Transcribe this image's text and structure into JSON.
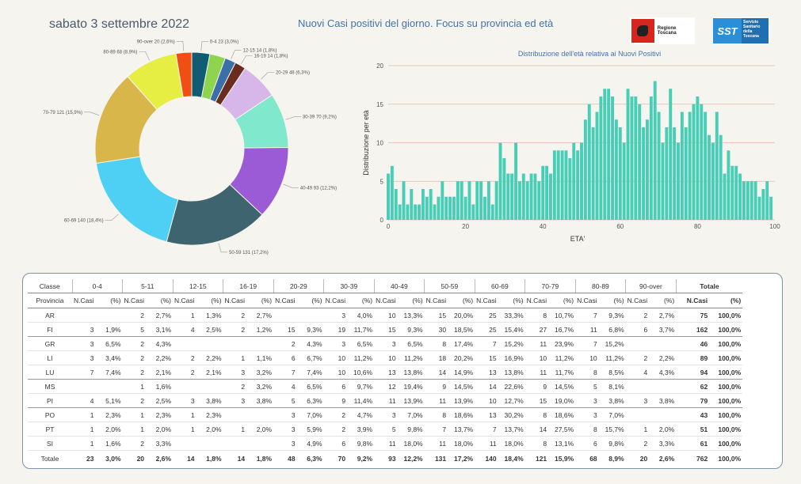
{
  "header": {
    "date": "sabato 3 settembre 2022",
    "title": "Nuovi Casi positivi del giorno. Focus su provincia ed età",
    "logo_region": "Regione Toscana",
    "logo_sst_mark": "SST",
    "logo_sst_text": "Servizio Sanitario della Toscana"
  },
  "colors": {
    "histogram_bar": "#48cdb7",
    "grid": "#e8b9a6"
  },
  "chart_data": [
    {
      "type": "pie",
      "title": "",
      "categories": [
        "0-4",
        "5-11",
        "12-15",
        "16-19",
        "20-29",
        "30-39",
        "40-49",
        "50-59",
        "60-69",
        "70-79",
        "80-89",
        "90-over"
      ],
      "values": [
        23,
        20,
        14,
        14,
        48,
        70,
        93,
        131,
        140,
        121,
        68,
        20
      ],
      "labels": [
        "0-4 23 (3,0%)",
        "",
        "12-15 14 (1,8%)",
        "16-19 14 (1,8%)",
        "20-29 48 (6,3%)",
        "30-39 70 (9,2%)",
        "40-49 93 (12,2%)",
        "50-59 131 (17,2%)",
        "60-69 140 (18,4%)",
        "70-79 121 (15,9%)",
        "80-89 68 (8,9%)",
        "90-over 20 (2,6%)"
      ],
      "colors": [
        "#0f5c73",
        "#8fd44e",
        "#3b6fa8",
        "#6b2c20",
        "#d7b6ea",
        "#80e8cc",
        "#9b5ad6",
        "#3e6470",
        "#4dd0f3",
        "#d9b64a",
        "#e6ee44",
        "#f04f14"
      ]
    },
    {
      "type": "bar",
      "title": "Distribuzione dell'età relativa ai Nuovi Positivi",
      "xlabel": "ETA'",
      "ylabel": "Distribuzione per età",
      "xlim": [
        0,
        100
      ],
      "ylim": [
        0,
        20
      ],
      "xticks": [
        0,
        20,
        40,
        60,
        80,
        100
      ],
      "yticks": [
        0,
        5,
        10,
        15,
        20
      ],
      "x": [
        0,
        1,
        2,
        3,
        4,
        5,
        6,
        7,
        8,
        9,
        10,
        11,
        12,
        13,
        14,
        15,
        16,
        17,
        18,
        19,
        20,
        21,
        22,
        23,
        24,
        25,
        26,
        27,
        28,
        29,
        30,
        31,
        32,
        33,
        34,
        35,
        36,
        37,
        38,
        39,
        40,
        41,
        42,
        43,
        44,
        45,
        46,
        47,
        48,
        49,
        50,
        51,
        52,
        53,
        54,
        55,
        56,
        57,
        58,
        59,
        60,
        61,
        62,
        63,
        64,
        65,
        66,
        67,
        68,
        69,
        70,
        71,
        72,
        73,
        74,
        75,
        76,
        77,
        78,
        79,
        80,
        81,
        82,
        83,
        84,
        85,
        86,
        87,
        88,
        89,
        90,
        91,
        92,
        93,
        94,
        95,
        96,
        97,
        98,
        99
      ],
      "values": [
        6,
        7,
        4,
        2,
        5,
        2,
        4,
        2,
        2,
        4,
        3,
        4,
        2,
        3,
        5,
        3,
        3,
        3,
        5,
        5,
        3,
        5,
        2,
        5,
        5,
        3,
        5,
        2,
        5,
        10,
        8,
        6,
        6,
        10,
        5,
        6,
        5,
        6,
        6,
        5,
        7,
        7,
        6,
        9,
        9,
        9,
        9,
        8,
        10,
        9,
        10,
        13,
        15,
        12,
        14,
        16,
        17,
        17,
        16,
        13,
        12,
        10,
        17,
        16,
        16,
        15,
        12,
        13,
        16,
        18,
        14,
        10,
        12,
        17,
        12,
        10,
        14,
        12,
        14,
        15,
        16,
        15,
        14,
        11,
        10,
        14,
        11,
        6,
        9,
        7,
        7,
        6,
        5,
        5,
        5,
        5,
        3,
        4,
        5,
        3
      ]
    }
  ],
  "table": {
    "groups": [
      "Classe",
      "0-4",
      "5-11",
      "12-15",
      "16-19",
      "20-29",
      "30-39",
      "40-49",
      "50-59",
      "60-69",
      "70-79",
      "80-89",
      "90-over",
      "Totale"
    ],
    "sub": {
      "provincia": "Provincia",
      "n": "N.Casi",
      "p": "(%)"
    },
    "rows": [
      {
        "prov": "AR",
        "cells": [
          [
            "",
            ""
          ],
          [
            "2",
            "2,7%"
          ],
          [
            "1",
            "1,3%"
          ],
          [
            "2",
            "2,7%"
          ],
          [
            "",
            ""
          ],
          [
            "3",
            "4,0%"
          ],
          [
            "10",
            "13,3%"
          ],
          [
            "15",
            "20,0%"
          ],
          [
            "25",
            "33,3%"
          ],
          [
            "8",
            "10,7%"
          ],
          [
            "7",
            "9,3%"
          ],
          [
            "2",
            "2,7%"
          ]
        ],
        "tot": [
          "75",
          "100,0%"
        ]
      },
      {
        "prov": "FI",
        "cells": [
          [
            "3",
            "1,9%"
          ],
          [
            "5",
            "3,1%"
          ],
          [
            "4",
            "2,5%"
          ],
          [
            "2",
            "1,2%"
          ],
          [
            "15",
            "9,3%"
          ],
          [
            "19",
            "11,7%"
          ],
          [
            "15",
            "9,3%"
          ],
          [
            "30",
            "18,5%"
          ],
          [
            "25",
            "15,4%"
          ],
          [
            "27",
            "16,7%"
          ],
          [
            "11",
            "6,8%"
          ],
          [
            "6",
            "3,7%"
          ]
        ],
        "tot": [
          "162",
          "100,0%"
        ]
      },
      {
        "prov": "GR",
        "cells": [
          [
            "3",
            "6,5%"
          ],
          [
            "2",
            "4,3%"
          ],
          [
            "",
            ""
          ],
          [
            "",
            ""
          ],
          [
            "2",
            "4,3%"
          ],
          [
            "3",
            "6,5%"
          ],
          [
            "3",
            "6,5%"
          ],
          [
            "8",
            "17,4%"
          ],
          [
            "7",
            "15,2%"
          ],
          [
            "11",
            "23,9%"
          ],
          [
            "7",
            "15,2%"
          ],
          [
            "",
            ""
          ]
        ],
        "tot": [
          "46",
          "100,0%"
        ]
      },
      {
        "prov": "LI",
        "cells": [
          [
            "3",
            "3,4%"
          ],
          [
            "2",
            "2,2%"
          ],
          [
            "2",
            "2,2%"
          ],
          [
            "1",
            "1,1%"
          ],
          [
            "6",
            "6,7%"
          ],
          [
            "10",
            "11,2%"
          ],
          [
            "10",
            "11,2%"
          ],
          [
            "18",
            "20,2%"
          ],
          [
            "15",
            "16,9%"
          ],
          [
            "10",
            "11,2%"
          ],
          [
            "10",
            "11,2%"
          ],
          [
            "2",
            "2,2%"
          ]
        ],
        "tot": [
          "89",
          "100,0%"
        ]
      },
      {
        "prov": "LU",
        "cells": [
          [
            "7",
            "7,4%"
          ],
          [
            "2",
            "2,1%"
          ],
          [
            "2",
            "2,1%"
          ],
          [
            "3",
            "3,2%"
          ],
          [
            "7",
            "7,4%"
          ],
          [
            "10",
            "10,6%"
          ],
          [
            "13",
            "13,8%"
          ],
          [
            "14",
            "14,9%"
          ],
          [
            "13",
            "13,8%"
          ],
          [
            "11",
            "11,7%"
          ],
          [
            "8",
            "8,5%"
          ],
          [
            "4",
            "4,3%"
          ]
        ],
        "tot": [
          "94",
          "100,0%"
        ]
      },
      {
        "prov": "MS",
        "cells": [
          [
            "",
            ""
          ],
          [
            "1",
            "1,6%"
          ],
          [
            "",
            ""
          ],
          [
            "2",
            "3,2%"
          ],
          [
            "4",
            "6,5%"
          ],
          [
            "6",
            "9,7%"
          ],
          [
            "12",
            "19,4%"
          ],
          [
            "9",
            "14,5%"
          ],
          [
            "14",
            "22,6%"
          ],
          [
            "9",
            "14,5%"
          ],
          [
            "5",
            "8,1%"
          ],
          [
            "",
            ""
          ]
        ],
        "tot": [
          "62",
          "100,0%"
        ]
      },
      {
        "prov": "PI",
        "cells": [
          [
            "4",
            "5,1%"
          ],
          [
            "2",
            "2,5%"
          ],
          [
            "3",
            "3,8%"
          ],
          [
            "3",
            "3,8%"
          ],
          [
            "5",
            "6,3%"
          ],
          [
            "9",
            "11,4%"
          ],
          [
            "11",
            "13,9%"
          ],
          [
            "11",
            "13,9%"
          ],
          [
            "10",
            "12,7%"
          ],
          [
            "15",
            "19,0%"
          ],
          [
            "3",
            "3,8%"
          ],
          [
            "3",
            "3,8%"
          ]
        ],
        "tot": [
          "79",
          "100,0%"
        ]
      },
      {
        "prov": "PO",
        "cells": [
          [
            "1",
            "2,3%"
          ],
          [
            "1",
            "2,3%"
          ],
          [
            "1",
            "2,3%"
          ],
          [
            "",
            ""
          ],
          [
            "3",
            "7,0%"
          ],
          [
            "2",
            "4,7%"
          ],
          [
            "3",
            "7,0%"
          ],
          [
            "8",
            "18,6%"
          ],
          [
            "13",
            "30,2%"
          ],
          [
            "8",
            "18,6%"
          ],
          [
            "3",
            "7,0%"
          ],
          [
            "",
            ""
          ]
        ],
        "tot": [
          "43",
          "100,0%"
        ]
      },
      {
        "prov": "PT",
        "cells": [
          [
            "1",
            "2,0%"
          ],
          [
            "1",
            "2,0%"
          ],
          [
            "1",
            "2,0%"
          ],
          [
            "1",
            "2,0%"
          ],
          [
            "3",
            "5,9%"
          ],
          [
            "2",
            "3,9%"
          ],
          [
            "5",
            "9,8%"
          ],
          [
            "7",
            "13,7%"
          ],
          [
            "7",
            "13,7%"
          ],
          [
            "14",
            "27,5%"
          ],
          [
            "8",
            "15,7%"
          ],
          [
            "1",
            "2,0%"
          ]
        ],
        "tot": [
          "51",
          "100,0%"
        ]
      },
      {
        "prov": "SI",
        "cells": [
          [
            "1",
            "1,6%"
          ],
          [
            "2",
            "3,3%"
          ],
          [
            "",
            ""
          ],
          [
            "",
            ""
          ],
          [
            "3",
            "4,9%"
          ],
          [
            "6",
            "9,8%"
          ],
          [
            "11",
            "18,0%"
          ],
          [
            "11",
            "18,0%"
          ],
          [
            "11",
            "18,0%"
          ],
          [
            "8",
            "13,1%"
          ],
          [
            "6",
            "9,8%"
          ],
          [
            "2",
            "3,3%"
          ]
        ],
        "tot": [
          "61",
          "100,0%"
        ]
      }
    ],
    "total": {
      "prov": "Totale",
      "cells": [
        [
          "23",
          "3,0%"
        ],
        [
          "20",
          "2,6%"
        ],
        [
          "14",
          "1,8%"
        ],
        [
          "14",
          "1,8%"
        ],
        [
          "48",
          "6,3%"
        ],
        [
          "70",
          "9,2%"
        ],
        [
          "93",
          "12,2%"
        ],
        [
          "131",
          "17,2%"
        ],
        [
          "140",
          "18,4%"
        ],
        [
          "121",
          "15,9%"
        ],
        [
          "68",
          "8,9%"
        ],
        [
          "20",
          "2,6%"
        ]
      ],
      "tot": [
        "762",
        "100,0%"
      ]
    }
  }
}
